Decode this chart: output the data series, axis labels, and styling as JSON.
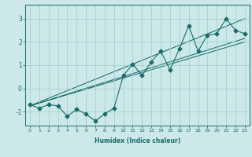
{
  "x": [
    0,
    1,
    2,
    3,
    4,
    5,
    6,
    7,
    8,
    9,
    10,
    11,
    12,
    13,
    14,
    15,
    16,
    17,
    18,
    19,
    20,
    21,
    22,
    23
  ],
  "y_data": [
    -0.7,
    -0.85,
    -0.7,
    -0.75,
    -1.2,
    -0.9,
    -1.1,
    -1.4,
    -1.1,
    -0.85,
    0.55,
    1.05,
    0.55,
    1.15,
    1.6,
    0.8,
    1.7,
    2.7,
    1.6,
    2.3,
    2.35,
    3.0,
    2.5,
    2.35
  ],
  "line_color": "#1a6b6b",
  "bg_color": "#cce8e8",
  "grid_color": "#9fcece",
  "marker": "D",
  "marker_size": 2.5,
  "xlabel": "Humidex (Indice chaleur)",
  "xlim": [
    -0.5,
    23.5
  ],
  "ylim": [
    -1.6,
    3.6
  ],
  "yticks": [
    -1,
    0,
    1,
    2,
    3
  ],
  "xticks": [
    0,
    1,
    2,
    3,
    4,
    5,
    6,
    7,
    8,
    9,
    10,
    11,
    12,
    13,
    14,
    15,
    16,
    17,
    18,
    19,
    20,
    21,
    22,
    23
  ],
  "xtick_labels": [
    "0",
    "1",
    "2",
    "3",
    "4",
    "5",
    "6",
    "7",
    "8",
    "9",
    "10",
    "11",
    "12",
    "13",
    "14",
    "15",
    "16",
    "17",
    "18",
    "19",
    "20",
    "21",
    "22",
    "23"
  ],
  "reg_lines": [
    {
      "x0": 0,
      "y0": -0.75,
      "x1": 23,
      "y1": 3.0
    },
    {
      "x0": 0,
      "y0": -0.75,
      "x1": 23,
      "y1": 2.15
    },
    {
      "x0": 0,
      "y0": -0.75,
      "x1": 23,
      "y1": 2.0
    }
  ]
}
